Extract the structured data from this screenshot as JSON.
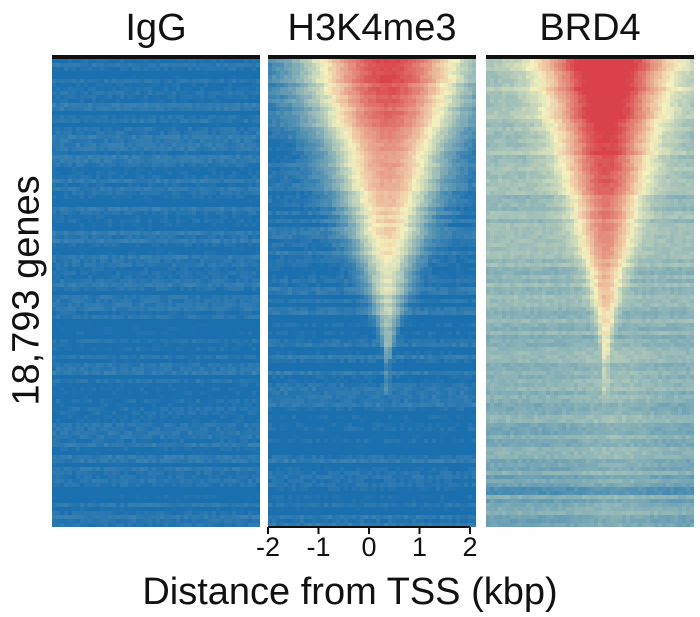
{
  "chart_data": {
    "type": "heatmap",
    "ylabel": "18,793 genes",
    "xlabel": "Distance from TSS (kbp)",
    "x_ticks": [
      "-2",
      "-1",
      "0",
      "1",
      "2"
    ],
    "xlim": [
      -2,
      2
    ],
    "n_genes": 18793,
    "colormap": {
      "low": "#1a6faf",
      "mid": "#f4f1be",
      "high": "#d9424a"
    },
    "panels": [
      {
        "name": "IgG",
        "signal": "none",
        "background_level": 0.02,
        "peak_level": 0.0,
        "peak_width_kbp": 0.0
      },
      {
        "name": "H3K4me3",
        "signal": "strong",
        "background_level": 0.02,
        "peak_level": 1.0,
        "peak_width_kbp": 1.9
      },
      {
        "name": "BRD4",
        "signal": "moderate",
        "background_level": 0.33,
        "peak_level": 0.9,
        "peak_width_kbp": 1.4
      }
    ]
  }
}
